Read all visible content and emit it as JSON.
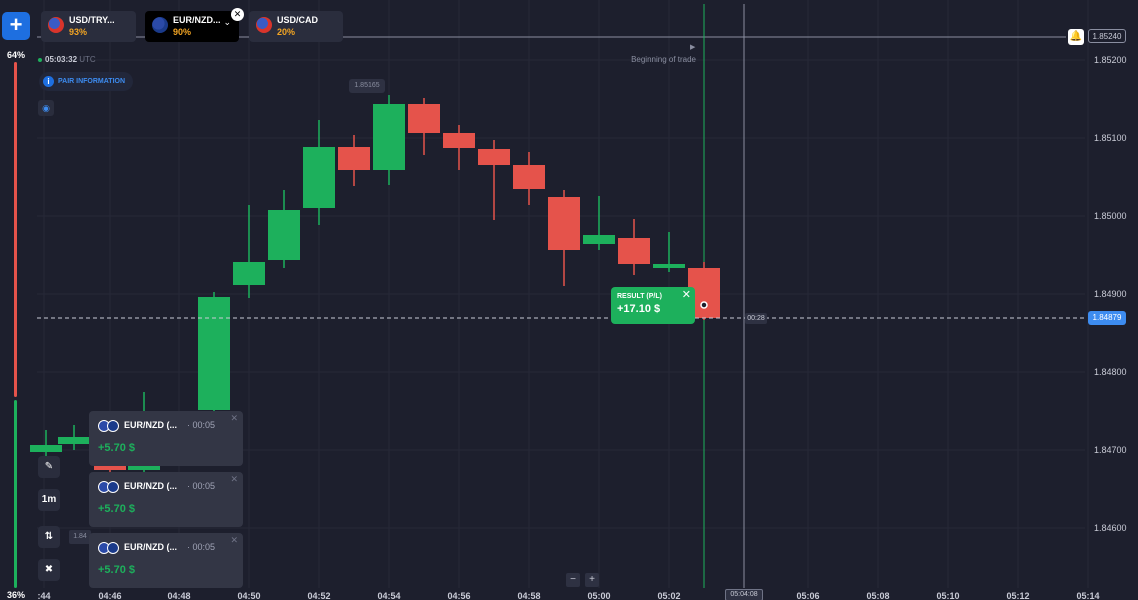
{
  "sidebar": {
    "add_label": "+",
    "top_percent": "64%",
    "bottom_percent": "36%"
  },
  "asset_tabs": [
    {
      "name": "USD/TRY...",
      "payout": "93%"
    },
    {
      "name": "EUR/NZD...",
      "payout": "90%"
    },
    {
      "name": "USD/CAD",
      "payout": "20%"
    }
  ],
  "clock": {
    "time": "05:03:32",
    "zone": "UTC"
  },
  "pair_info_label": "PAIR INFORMATION",
  "tools": {
    "timeframe": "1m"
  },
  "price_axis": {
    "labels": [
      "1.85200",
      "1.85100",
      "1.85000",
      "1.84900",
      "1.84800",
      "1.84700",
      "1.84600"
    ],
    "top_price": "1.85240",
    "current_price": "1.84879"
  },
  "time_axis": {
    "labels": [
      ":44",
      "04:46",
      "04:48",
      "04:50",
      "04:52",
      "04:54",
      "04:56",
      "04:58",
      "05:00",
      "05:02",
      "05:04:08",
      "05:06",
      "05:08",
      "05:10",
      "05:12",
      "05:14"
    ]
  },
  "chart": {
    "high_label": "1.85165",
    "begin_trade": "Beginning of trade",
    "timer": "00:28",
    "left_badge": "1.84",
    "colors": {
      "up": "#1db05c",
      "down": "#e5534b"
    }
  },
  "result": {
    "label": "RESULT (P/L)",
    "value": "+17.10 $"
  },
  "trades": [
    {
      "pair": "EUR/NZD (...",
      "duration": "· 00:05",
      "profit": "+5.70 $"
    },
    {
      "pair": "EUR/NZD (...",
      "duration": "· 00:05",
      "profit": "+5.70 $"
    },
    {
      "pair": "EUR/NZD (...",
      "duration": "· 00:05",
      "profit": "+5.70 $"
    }
  ],
  "zoom": {
    "minus": "−",
    "plus": "+"
  }
}
